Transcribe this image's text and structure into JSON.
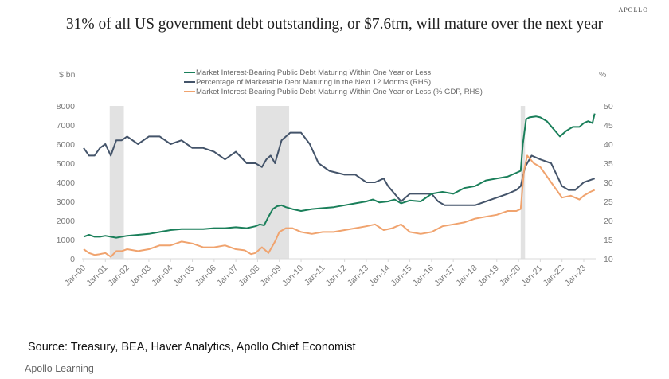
{
  "brand": "APOLLO",
  "title": "31% of all US government debt outstanding, or $7.6trn, will mature over the next year",
  "source": "Source: Treasury, BEA, Haver Analytics, Apollo Chief Economist",
  "footer": "Apollo Learning",
  "chart_data": {
    "type": "line",
    "title": "31% of all US government debt outstanding, or $7.6trn, will mature over the next year",
    "left_axis": {
      "label": "$ bn",
      "ylim": [
        0,
        8000
      ],
      "ticks": [
        0,
        1000,
        2000,
        3000,
        4000,
        5000,
        6000,
        7000,
        8000
      ]
    },
    "right_axis": {
      "label": "%",
      "ylim": [
        10,
        50
      ],
      "ticks": [
        10,
        15,
        20,
        25,
        30,
        35,
        40,
        45,
        50
      ]
    },
    "x_ticks": [
      "Jan-00",
      "Jan-01",
      "Jan-02",
      "Jan-03",
      "Jan-04",
      "Jan-05",
      "Jan-06",
      "Jan-07",
      "Jan-08",
      "Jan-09",
      "Jan-10",
      "Jan-11",
      "Jan-12",
      "Jan-13",
      "Jan-14",
      "Jan-15",
      "Jan-16",
      "Jan-17",
      "Jan-18",
      "Jan-19",
      "Jan-20",
      "Jan-21",
      "Jan-22",
      "Jan-23"
    ],
    "x_range": [
      2000.0,
      2023.55
    ],
    "grid": false,
    "legend_position": "top-center",
    "recessions": [
      [
        2001.2,
        2001.85
      ],
      [
        2007.95,
        2009.45
      ],
      [
        2020.1,
        2020.3
      ]
    ],
    "series": [
      {
        "name": "Market Interest-Bearing Public Debt Maturing Within One Year or Less",
        "axis": "left",
        "color": "#1a7f5a",
        "x": [
          2000.0,
          2000.25,
          2000.5,
          2000.75,
          2001.0,
          2001.25,
          2001.5,
          2001.75,
          2002.0,
          2002.5,
          2003.0,
          2003.5,
          2004.0,
          2004.5,
          2005.0,
          2005.5,
          2006.0,
          2006.5,
          2007.0,
          2007.5,
          2007.9,
          2008.1,
          2008.3,
          2008.5,
          2008.7,
          2008.9,
          2009.1,
          2009.3,
          2009.6,
          2010.0,
          2010.5,
          2011.0,
          2011.5,
          2012.0,
          2012.5,
          2013.0,
          2013.3,
          2013.6,
          2014.0,
          2014.3,
          2014.6,
          2015.0,
          2015.5,
          2016.0,
          2016.5,
          2017.0,
          2017.5,
          2018.0,
          2018.5,
          2019.0,
          2019.5,
          2019.9,
          2020.1,
          2020.2,
          2020.35,
          2020.5,
          2020.8,
          2021.0,
          2021.3,
          2021.6,
          2021.9,
          2022.2,
          2022.5,
          2022.8,
          2023.0,
          2023.2,
          2023.4,
          2023.5
        ],
        "y": [
          1150,
          1250,
          1150,
          1150,
          1200,
          1150,
          1100,
          1150,
          1200,
          1250,
          1300,
          1400,
          1500,
          1550,
          1550,
          1550,
          1600,
          1600,
          1650,
          1600,
          1700,
          1800,
          1750,
          2200,
          2600,
          2750,
          2800,
          2700,
          2600,
          2500,
          2600,
          2650,
          2700,
          2800,
          2900,
          3000,
          3100,
          2950,
          3000,
          3100,
          2900,
          3050,
          3000,
          3400,
          3500,
          3400,
          3700,
          3800,
          4100,
          4200,
          4300,
          4500,
          4600,
          6000,
          7300,
          7400,
          7450,
          7400,
          7200,
          6800,
          6400,
          6700,
          6900,
          6900,
          7100,
          7200,
          7100,
          7600
        ]
      },
      {
        "name": "Percentage of Marketable Debt Maturing in the Next 12 Months (RHS)",
        "axis": "right",
        "color": "#44546a",
        "x": [
          2000.0,
          2000.25,
          2000.5,
          2000.75,
          2001.0,
          2001.25,
          2001.5,
          2001.75,
          2002.0,
          2002.5,
          2003.0,
          2003.5,
          2004.0,
          2004.5,
          2005.0,
          2005.5,
          2006.0,
          2006.5,
          2007.0,
          2007.5,
          2007.9,
          2008.2,
          2008.4,
          2008.6,
          2008.8,
          2009.1,
          2009.5,
          2010.0,
          2010.4,
          2010.8,
          2011.3,
          2012.0,
          2012.5,
          2013.0,
          2013.4,
          2013.8,
          2014.0,
          2014.3,
          2014.6,
          2015.0,
          2015.5,
          2016.0,
          2016.3,
          2016.6,
          2017.0,
          2017.5,
          2018.0,
          2018.5,
          2019.0,
          2019.5,
          2019.9,
          2020.1,
          2020.3,
          2020.6,
          2021.0,
          2021.5,
          2022.0,
          2022.3,
          2022.6,
          2023.0,
          2023.5
        ],
        "y": [
          39,
          37,
          37,
          39,
          40,
          37,
          41,
          41,
          42,
          40,
          42,
          42,
          40,
          41,
          39,
          39,
          38,
          36,
          38,
          35,
          35,
          34,
          36,
          37,
          35,
          41,
          43,
          43,
          40,
          35,
          33,
          32,
          32,
          30,
          30,
          31,
          29,
          27,
          25,
          27,
          27,
          27,
          25,
          24,
          24,
          24,
          24,
          25,
          26,
          27,
          28,
          29,
          34,
          37,
          36,
          35,
          29,
          28,
          28,
          30,
          31
        ]
      },
      {
        "name": "Market Interest-Bearing Public Debt Maturing Within One Year or Less (% GDP, RHS)",
        "axis": "right",
        "color": "#f0a36e",
        "x": [
          2000.0,
          2000.25,
          2000.5,
          2000.75,
          2001.0,
          2001.25,
          2001.5,
          2001.75,
          2002.0,
          2002.5,
          2003.0,
          2003.5,
          2004.0,
          2004.5,
          2005.0,
          2005.5,
          2006.0,
          2006.5,
          2007.0,
          2007.4,
          2007.7,
          2007.9,
          2008.2,
          2008.5,
          2008.8,
          2009.0,
          2009.3,
          2009.6,
          2010.0,
          2010.5,
          2011.0,
          2011.5,
          2012.0,
          2012.5,
          2013.0,
          2013.4,
          2013.8,
          2014.2,
          2014.6,
          2015.0,
          2015.5,
          2016.0,
          2016.5,
          2017.0,
          2017.5,
          2018.0,
          2018.5,
          2019.0,
          2019.5,
          2019.9,
          2020.1,
          2020.25,
          2020.4,
          2020.7,
          2021.0,
          2021.5,
          2022.0,
          2022.4,
          2022.8,
          2023.0,
          2023.3,
          2023.5
        ],
        "y": [
          12.5,
          11.5,
          11,
          11.2,
          11.5,
          10.5,
          12,
          12,
          12.5,
          12,
          12.5,
          13.5,
          13.5,
          14.5,
          14,
          13,
          13,
          13.5,
          12.5,
          12.2,
          11.2,
          11.5,
          13,
          11.5,
          14.5,
          17,
          18,
          18,
          17,
          16.5,
          17,
          17,
          17.5,
          18,
          18.5,
          19,
          17.5,
          18,
          19,
          17,
          16.5,
          17,
          18.5,
          19,
          19.5,
          20.5,
          21,
          21.5,
          22.5,
          22.5,
          23,
          33,
          37,
          35,
          34,
          30,
          26,
          26.5,
          25.5,
          26.5,
          27.5,
          28
        ]
      }
    ]
  }
}
